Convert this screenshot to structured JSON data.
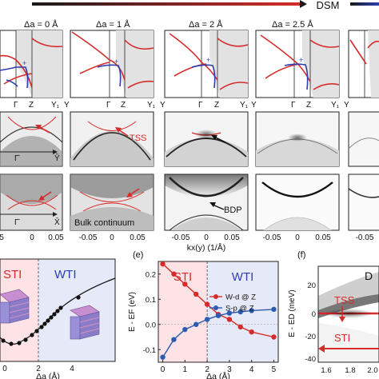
{
  "header": {
    "dsm_label": "DSM",
    "arrow_left_colors": [
      "#1a1a1a",
      "#d62b2b"
    ],
    "arrow_right_colors": [
      "#1a1a1a",
      "#2b3fb0"
    ]
  },
  "band_row": {
    "panels": [
      {
        "title": "Δa = 0 Å"
      },
      {
        "title": "Δa = 1 Å"
      },
      {
        "title": "Δa = 2 Å"
      },
      {
        "title": "Δa = 2.5 Å"
      }
    ],
    "k_labels": [
      "Γ",
      "Z",
      "Y₁",
      "Y",
      "Γ",
      "Z",
      "Y₁",
      "Y",
      "Γ",
      "Z",
      "Y₁",
      "Y",
      "Γ",
      "Z",
      "Y₁",
      "Y"
    ],
    "plus_marker": "+"
  },
  "surface_row": {
    "tss_label": "TSS",
    "gamma_bar": "Γ̄",
    "y_bar": "Ȳ",
    "x_bar": "X̄",
    "bulk_continuum_label": "Bulk continuum",
    "bdp_label": "BDP"
  },
  "kaxis": {
    "ticks": [
      "5",
      "0",
      "0.05",
      "-0.05",
      "0",
      "0.05",
      "-0.05",
      "0",
      "0.05",
      "-0.05",
      "0",
      "0.05",
      "-0.05"
    ],
    "label": "kx(y) (1/Å)"
  },
  "panel_labels": {
    "e": "(e)",
    "f": "(f)"
  },
  "bottom_left": {
    "sti_label": "STI",
    "wti_label": "WTI",
    "xlabel": "Δa (Å)",
    "xticks": [
      "0",
      "2",
      "4"
    ]
  },
  "chart_data": [
    {
      "type": "line",
      "panel": "(e)",
      "x": [
        0,
        0.5,
        1,
        1.5,
        2,
        2.5,
        3,
        3.5,
        4,
        5
      ],
      "series": [
        {
          "name": "W-d @ Z",
          "color": "#d62b2b",
          "values": [
            0.24,
            0.2,
            0.16,
            0.12,
            0.08,
            0.04,
            0.02,
            -0.01,
            -0.03,
            -0.05
          ]
        },
        {
          "name": "S-p @ Z",
          "color": "#2b5cb0",
          "values": [
            -0.13,
            -0.06,
            -0.02,
            0.0,
            0.02,
            0.035,
            0.045,
            0.05,
            0.055,
            0.06
          ]
        }
      ],
      "xlabel": "Δa (Å)",
      "ylabel": "E - EF (eV)",
      "xlim": [
        -0.2,
        5.2
      ],
      "ylim": [
        -0.15,
        0.25
      ],
      "xticks": [
        "0",
        "1",
        "2",
        "3",
        "4",
        "5"
      ],
      "yticks": [
        "0.2",
        "0.1",
        "0.0",
        "-0.1"
      ],
      "regions": [
        {
          "label": "STI",
          "from": -0.2,
          "to": 2,
          "color": "#fde3e6"
        },
        {
          "label": "WTI",
          "from": 2,
          "to": 5.2,
          "color": "#e6e9f7"
        }
      ]
    }
  ],
  "panel_f": {
    "ylabel": "E - ED (meV)",
    "yticks": [
      "20",
      "0",
      "-20",
      "-40"
    ],
    "xticks": [
      "1.6",
      "1.8",
      "2.0"
    ],
    "tss_label": "TSS",
    "sti_label": "STI",
    "corner_letter": "D"
  }
}
